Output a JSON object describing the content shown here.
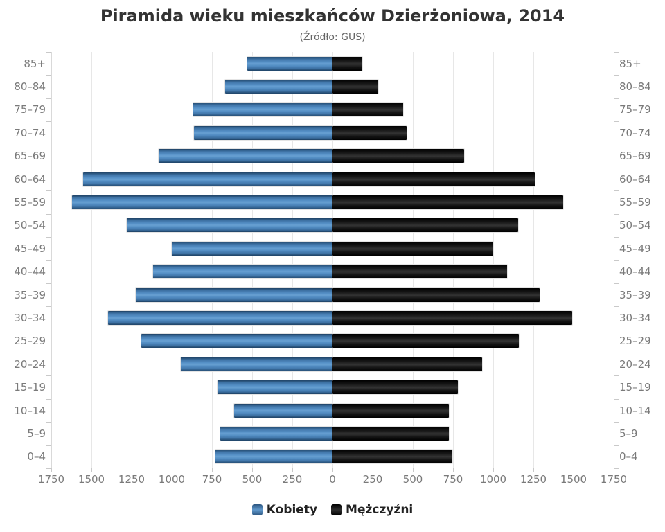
{
  "chart_data": {
    "type": "bar",
    "variant": "population-pyramid",
    "title": "Piramida wieku mieszkańców Dzierżoniowa, 2014",
    "subtitle": "(Źródło: GUS)",
    "categories_top_to_bottom": [
      "85+",
      "80–84",
      "75–79",
      "70–74",
      "65–69",
      "60–64",
      "55–59",
      "50–54",
      "45–49",
      "40–44",
      "35–39",
      "30–34",
      "25–29",
      "20–24",
      "15–19",
      "10–14",
      "5–9",
      "0–4"
    ],
    "series": [
      {
        "name": "Kobiety",
        "side": "left",
        "color": "#4c84b8",
        "values": [
          530,
          670,
          865,
          860,
          1080,
          1550,
          1620,
          1280,
          1000,
          1115,
          1225,
          1395,
          1190,
          945,
          715,
          610,
          700,
          730
        ]
      },
      {
        "name": "Mężczyźni",
        "side": "right",
        "color": "#111111",
        "values": [
          185,
          285,
          440,
          460,
          820,
          1260,
          1435,
          1155,
          1000,
          1085,
          1290,
          1490,
          1160,
          930,
          780,
          725,
          725,
          745
        ]
      }
    ],
    "x_axis": {
      "min": 0,
      "max": 1750,
      "tick_interval": 250,
      "tick_labels": [
        "1750",
        "1500",
        "1250",
        "1000",
        "750",
        "500",
        "250",
        "0",
        "250",
        "500",
        "750",
        "1000",
        "1250",
        "1500",
        "1750"
      ],
      "grid": true
    },
    "y_axis": {
      "mirrored_labels": true
    },
    "legend": {
      "position": "bottom",
      "items": [
        "Kobiety",
        "Mężczyźni"
      ]
    },
    "colors": {
      "title": "#333333",
      "subtitle": "#666666",
      "axis_labels": "#7a7a7a",
      "gridline": "#e7e7e7",
      "tick": "#c9c9c9",
      "kobiety_bar": "#4c84b8",
      "mezczyzni_bar": "#111111"
    }
  }
}
